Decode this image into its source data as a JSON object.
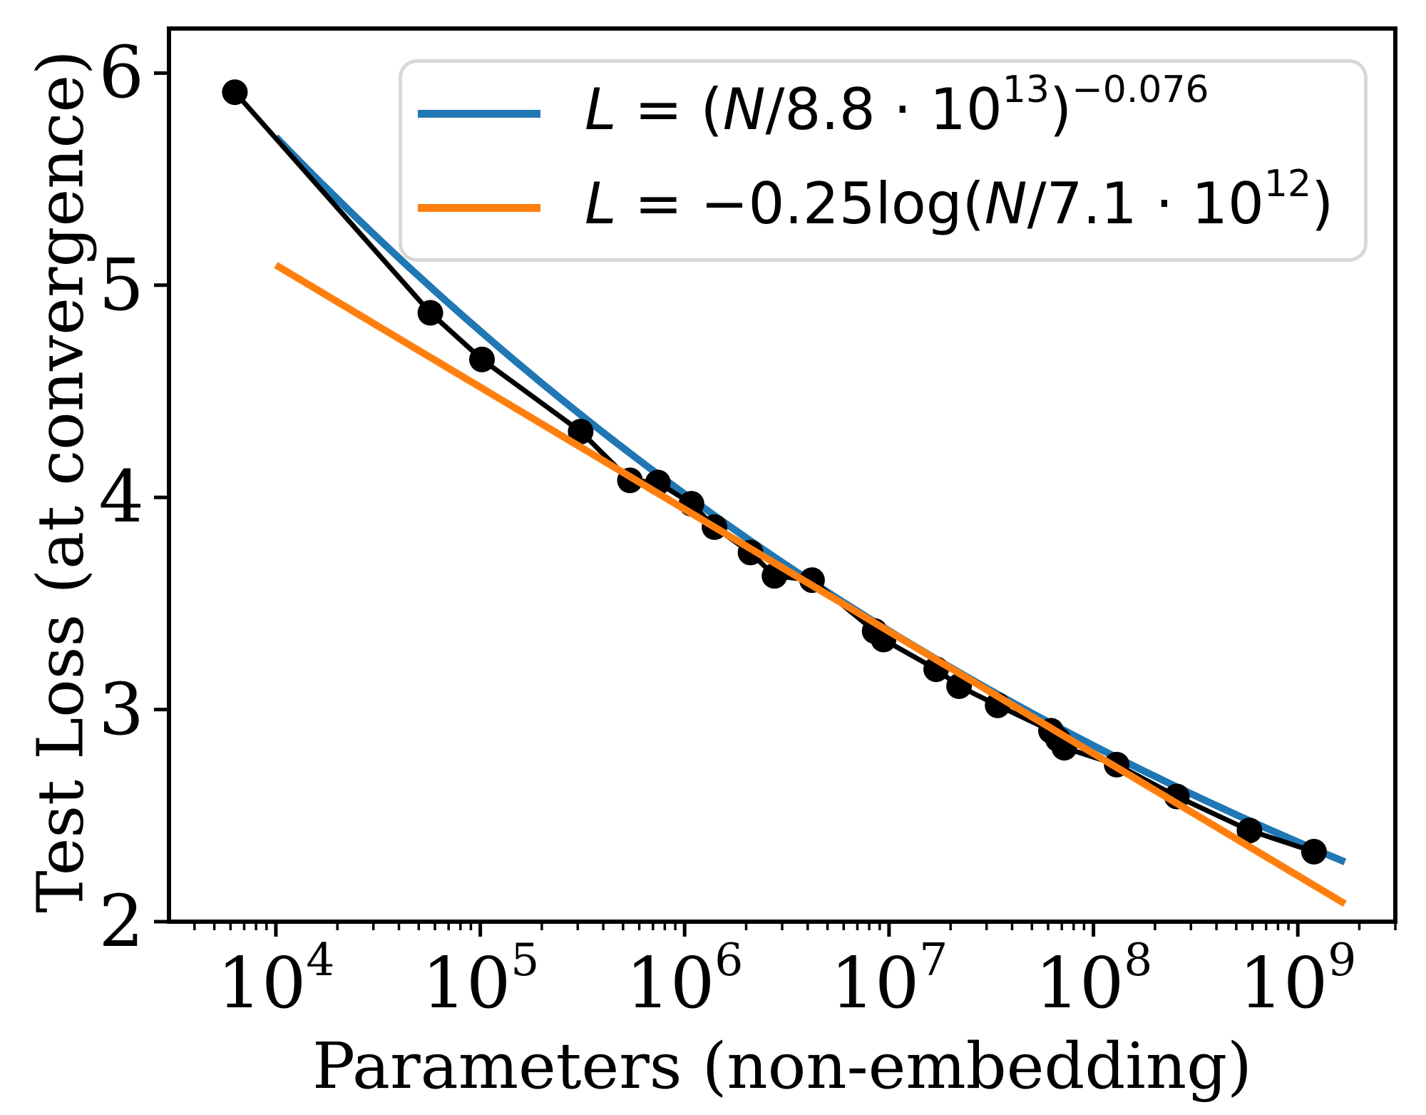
{
  "figure": {
    "background": "#ffffff"
  },
  "chart_data": {
    "type": "line",
    "title": "",
    "xlabel": "Parameters (non-embedding)",
    "ylabel": "Test Loss (at convergence)",
    "x_scale": "log10",
    "xlim": [
      3000,
      3000000000
    ],
    "ylim": [
      2.0,
      6.21
    ],
    "grid": false,
    "legend_position": "upper right inside",
    "x_major_ticks": [
      10000,
      100000,
      1000000,
      10000000,
      100000000,
      1000000000
    ],
    "x_tick_labels": [
      {
        "base": "10",
        "exp": "4"
      },
      {
        "base": "10",
        "exp": "5"
      },
      {
        "base": "10",
        "exp": "6"
      },
      {
        "base": "10",
        "exp": "7"
      },
      {
        "base": "10",
        "exp": "8"
      },
      {
        "base": "10",
        "exp": "9"
      }
    ],
    "y_ticks": [
      2,
      3,
      4,
      5,
      6
    ],
    "y_tick_labels": [
      "2",
      "3",
      "4",
      "5",
      "6"
    ],
    "series": [
      {
        "name": "test-loss-data",
        "kind": "scatter-line",
        "color": "#000000",
        "line_width": 7,
        "marker_radius": 18,
        "points": [
          [
            6300,
            5.91
          ],
          [
            57000,
            4.87
          ],
          [
            102000,
            4.65
          ],
          [
            310000,
            4.31
          ],
          [
            540000,
            4.08
          ],
          [
            740000,
            4.07
          ],
          [
            1080000,
            3.97
          ],
          [
            1400000,
            3.86
          ],
          [
            2100000,
            3.74
          ],
          [
            2750000,
            3.63
          ],
          [
            4200000,
            3.61
          ],
          [
            8500000,
            3.37
          ],
          [
            9400000,
            3.33
          ],
          [
            17000000,
            3.19
          ],
          [
            22000000,
            3.11
          ],
          [
            34000000,
            3.02
          ],
          [
            62000000,
            2.9
          ],
          [
            67000000,
            2.86
          ],
          [
            72000000,
            2.82
          ],
          [
            130000000,
            2.74
          ],
          [
            256000000,
            2.59
          ],
          [
            580000000,
            2.43
          ],
          [
            1200000000,
            2.33
          ]
        ]
      },
      {
        "name": "power-law-fit",
        "kind": "line",
        "color": "#1f77b4",
        "line_width": 10,
        "formula": "L = (N/8.8e13)^(-0.076)",
        "fit": {
          "type": "power",
          "scale": 88000000000000.0,
          "exponent": -0.076
        },
        "x_range": [
          10000,
          1700000000
        ]
      },
      {
        "name": "log-fit",
        "kind": "line",
        "color": "#ff7f0e",
        "line_width": 10,
        "formula": "L = -0.25*ln(N/7.1e12)",
        "fit": {
          "type": "log",
          "coeff": -0.25,
          "scale": 7100000000000.0
        },
        "x_range": [
          10000,
          1700000000
        ]
      }
    ]
  },
  "legend": {
    "items": [
      {
        "name": "power-law-fit",
        "color": "#1f77b4",
        "label_plain": "L = (N/8.8 ⋅ 10^13)^(−0.076)",
        "segments": [
          {
            "text": "L",
            "style": "var"
          },
          {
            "text": " = (",
            "style": "plain"
          },
          {
            "text": "N",
            "style": "var"
          },
          {
            "text": "/8.8 ⋅ 10",
            "style": "plain"
          },
          {
            "text": "13",
            "style": "sup"
          },
          {
            "text": ")",
            "style": "plain"
          },
          {
            "text": "−0.076",
            "style": "sup"
          }
        ]
      },
      {
        "name": "log-fit",
        "color": "#ff7f0e",
        "label_plain": "L = −0.25log(N/7.1 ⋅ 10^12)",
        "segments": [
          {
            "text": "L",
            "style": "var"
          },
          {
            "text": " = −0.25log(",
            "style": "plain"
          },
          {
            "text": "N",
            "style": "var"
          },
          {
            "text": "/7.1 ⋅ 10",
            "style": "plain"
          },
          {
            "text": "12",
            "style": "sup"
          },
          {
            "text": ")",
            "style": "plain"
          }
        ]
      }
    ]
  }
}
